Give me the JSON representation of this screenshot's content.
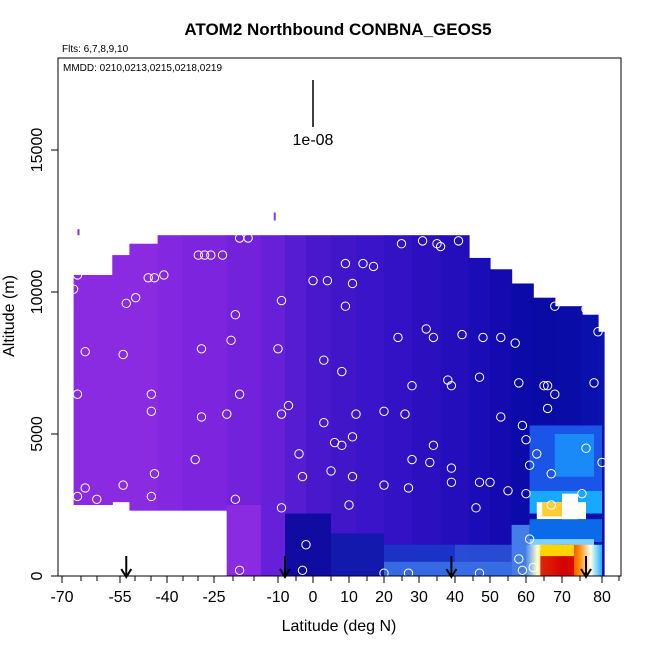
{
  "chart_data": {
    "type": "heatmap",
    "title": "ATOM2 Northbound CONBNA_GEOS5",
    "flights_label": "Flts: 6,7,8,9,10",
    "dates_label": "MMDD: 0210,0213,0215,0218,0219",
    "scale_label": "1e-08",
    "xlabel": "Latitude (deg N)",
    "ylabel": "Altitude (m)",
    "xlim": [
      -70,
      85
    ],
    "ylim": [
      0,
      18000
    ],
    "x_ticks": [
      -70,
      -55,
      -40,
      -25,
      -10,
      0,
      10,
      20,
      30,
      40,
      50,
      60,
      70,
      80
    ],
    "x_tick_labels": [
      "-70",
      "-55",
      "-40",
      "-25",
      "-10",
      "0",
      "10",
      "20",
      "30",
      "40",
      "50",
      "60",
      "70",
      "80"
    ],
    "x_minor_ticks": [
      -65,
      -60,
      -50,
      -45,
      -35,
      -30,
      -20,
      -15,
      -5,
      5,
      15,
      25,
      35,
      45,
      55,
      65,
      75,
      85
    ],
    "y_ticks": [
      0,
      5000,
      10000,
      15000
    ],
    "y_tick_labels": [
      "0",
      "5000",
      "10000",
      "15000"
    ],
    "grid": false,
    "arrow_latitudes": [
      -53,
      -8,
      39,
      76
    ],
    "colors": {
      "violet": "#8a2be2",
      "purple": "#5a20d8",
      "indigo": "#3a14c8",
      "navy": "#0a0aa8",
      "blue": "#1a3ad0",
      "lightblue": "#4a8aee",
      "cyan": "#1ab0ff",
      "white": "#fffff0",
      "yellow": "#ffe600",
      "orange": "#ff8a00",
      "red": "#d40000"
    },
    "columns": [
      {
        "x0": -67,
        "x1": -22,
        "ztop": 12000,
        "zbot": 2500,
        "zbot_ramp": [
          -67,
          -60,
          2500,
          2300
        ],
        "color": "violet"
      },
      {
        "x0": -60,
        "x1": -22,
        "ztop": 12000,
        "zbot": 2300,
        "color": "violet"
      },
      {
        "x0": -22,
        "x1": -14,
        "ztop": 12000,
        "zbot": 0,
        "color": "violet"
      },
      {
        "x0": -14,
        "x1": -5,
        "ztop": 12000,
        "zbot": 0,
        "color": "purple"
      },
      {
        "x0": -5,
        "x1": 5,
        "ztop": 12000,
        "zbot": 0,
        "color": "indigo"
      },
      {
        "x0": 5,
        "x1": 20,
        "ztop": 12000,
        "zbot": 0,
        "color": "indigo"
      },
      {
        "x0": 20,
        "x1": 45,
        "ztop": 12000,
        "zbot": 0,
        "color": "indigo"
      },
      {
        "x0": 45,
        "x1": 60,
        "ztop": 11000,
        "zbot": 0,
        "color": "navy"
      },
      {
        "x0": 60,
        "x1": 80,
        "ztop": 9700,
        "zbot": 0,
        "color": "navy"
      }
    ],
    "observation_points": [
      {
        "lat": -67,
        "alt": 10100
      },
      {
        "lat": -66,
        "alt": 10600
      },
      {
        "lat": -66,
        "alt": 6400
      },
      {
        "lat": -64,
        "alt": 7900
      },
      {
        "lat": -64,
        "alt": 3100
      },
      {
        "lat": -66,
        "alt": 2800
      },
      {
        "lat": -61,
        "alt": 2700
      },
      {
        "lat": -57,
        "alt": 11800
      },
      {
        "lat": -54,
        "alt": 7800
      },
      {
        "lat": -53,
        "alt": 9600
      },
      {
        "lat": -50,
        "alt": 9800
      },
      {
        "lat": -46,
        "alt": 10500
      },
      {
        "lat": -44,
        "alt": 10500
      },
      {
        "lat": -41,
        "alt": 10600
      },
      {
        "lat": -45,
        "alt": 6400
      },
      {
        "lat": -45,
        "alt": 5800
      },
      {
        "lat": -44,
        "alt": 3600
      },
      {
        "lat": -45,
        "alt": 2800
      },
      {
        "lat": -54,
        "alt": 3200
      },
      {
        "lat": -30,
        "alt": 11300
      },
      {
        "lat": -28,
        "alt": 11300
      },
      {
        "lat": -26,
        "alt": 11300
      },
      {
        "lat": -23,
        "alt": 11300
      },
      {
        "lat": -19,
        "alt": 11900
      },
      {
        "lat": -17,
        "alt": 11900
      },
      {
        "lat": -20,
        "alt": 9200
      },
      {
        "lat": -21,
        "alt": 8300
      },
      {
        "lat": -29,
        "alt": 8000
      },
      {
        "lat": -29,
        "alt": 5600
      },
      {
        "lat": -31,
        "alt": 4100
      },
      {
        "lat": -22,
        "alt": 5700
      },
      {
        "lat": -19,
        "alt": 6400
      },
      {
        "lat": -20,
        "alt": 2700
      },
      {
        "lat": -19,
        "alt": 200
      },
      {
        "lat": -9,
        "alt": 9700
      },
      {
        "lat": -10,
        "alt": 8000
      },
      {
        "lat": -9,
        "alt": 5700
      },
      {
        "lat": -7,
        "alt": 6000
      },
      {
        "lat": -4,
        "alt": 4300
      },
      {
        "lat": -3,
        "alt": 3500
      },
      {
        "lat": -9,
        "alt": 2400
      },
      {
        "lat": -2,
        "alt": 1100
      },
      {
        "lat": -3,
        "alt": 200
      },
      {
        "lat": 3,
        "alt": 5400
      },
      {
        "lat": 5,
        "alt": 3700
      },
      {
        "lat": 0,
        "alt": 10400
      },
      {
        "lat": 4,
        "alt": 10400
      },
      {
        "lat": 9,
        "alt": 11000
      },
      {
        "lat": 14,
        "alt": 11000
      },
      {
        "lat": 17,
        "alt": 10900
      },
      {
        "lat": 11,
        "alt": 10300
      },
      {
        "lat": 9,
        "alt": 9500
      },
      {
        "lat": 3,
        "alt": 7600
      },
      {
        "lat": 8,
        "alt": 7200
      },
      {
        "lat": 6,
        "alt": 4700
      },
      {
        "lat": 8,
        "alt": 4600
      },
      {
        "lat": 11,
        "alt": 4900
      },
      {
        "lat": 12,
        "alt": 5700
      },
      {
        "lat": 11,
        "alt": 3500
      },
      {
        "lat": 10,
        "alt": 2500
      },
      {
        "lat": 20,
        "alt": 5800
      },
      {
        "lat": 20,
        "alt": 3200
      },
      {
        "lat": 24,
        "alt": 8400
      },
      {
        "lat": 26,
        "alt": 5700
      },
      {
        "lat": 27,
        "alt": 3100
      },
      {
        "lat": 28,
        "alt": 4100
      },
      {
        "lat": 28,
        "alt": 6700
      },
      {
        "lat": 32,
        "alt": 8700
      },
      {
        "lat": 34,
        "alt": 8400
      },
      {
        "lat": 33,
        "alt": 4000
      },
      {
        "lat": 34,
        "alt": 4600
      },
      {
        "lat": 38,
        "alt": 6900
      },
      {
        "lat": 39,
        "alt": 6700
      },
      {
        "lat": 39,
        "alt": 3800
      },
      {
        "lat": 39,
        "alt": 3300
      },
      {
        "lat": 42,
        "alt": 8500
      },
      {
        "lat": 47,
        "alt": 3300
      },
      {
        "lat": 47,
        "alt": 7000
      },
      {
        "lat": 46,
        "alt": 2400
      },
      {
        "lat": 48,
        "alt": 8400
      },
      {
        "lat": 50,
        "alt": 3300
      },
      {
        "lat": 53,
        "alt": 8400
      },
      {
        "lat": 53,
        "alt": 5600
      },
      {
        "lat": 55,
        "alt": 3000
      },
      {
        "lat": 57,
        "alt": 8200
      },
      {
        "lat": 58,
        "alt": 6800
      },
      {
        "lat": 59,
        "alt": 5300
      },
      {
        "lat": 60,
        "alt": 4800
      },
      {
        "lat": 60,
        "alt": 2900
      },
      {
        "lat": 61,
        "alt": 3900
      },
      {
        "lat": 63,
        "alt": 4300
      },
      {
        "lat": 65,
        "alt": 6700
      },
      {
        "lat": 66,
        "alt": 6700
      },
      {
        "lat": 66,
        "alt": 5900
      },
      {
        "lat": 67,
        "alt": 3600
      },
      {
        "lat": 67,
        "alt": 2500
      },
      {
        "lat": 68,
        "alt": 6400
      },
      {
        "lat": 72,
        "alt": 2600
      },
      {
        "lat": 75,
        "alt": 2900
      },
      {
        "lat": 76,
        "alt": 4500
      },
      {
        "lat": 78,
        "alt": 6800
      },
      {
        "lat": 80,
        "alt": 4000
      },
      {
        "lat": 79,
        "alt": 8600
      },
      {
        "lat": 68,
        "alt": 9500
      },
      {
        "lat": 76,
        "alt": 9400
      },
      {
        "lat": 61,
        "alt": 1300
      },
      {
        "lat": 58,
        "alt": 600
      },
      {
        "lat": 62,
        "alt": 300
      },
      {
        "lat": 20,
        "alt": 100
      },
      {
        "lat": 27,
        "alt": 100
      },
      {
        "lat": 47,
        "alt": 100
      },
      {
        "lat": 59,
        "alt": 200
      },
      {
        "lat": 31,
        "alt": 11800
      },
      {
        "lat": 35,
        "alt": 11700
      },
      {
        "lat": 41,
        "alt": 11800
      },
      {
        "lat": 25,
        "alt": 11700
      },
      {
        "lat": 36,
        "alt": 11600
      }
    ]
  }
}
